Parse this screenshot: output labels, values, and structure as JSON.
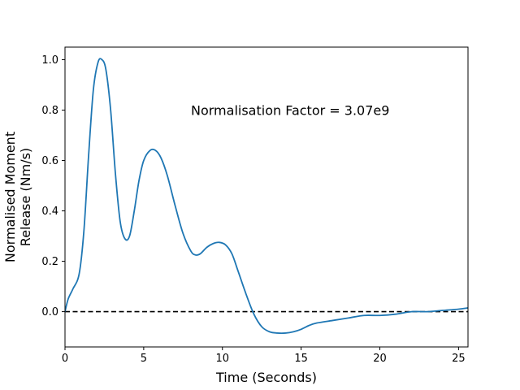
{
  "chart_data": {
    "type": "line",
    "title": "",
    "xlabel": "Time (Seconds)",
    "ylabel_lines": [
      "Normalised Moment",
      "Release (Nm/s)"
    ],
    "xlim": [
      0,
      25.6
    ],
    "ylim": [
      -0.14,
      1.05
    ],
    "xticks": [
      0,
      5,
      10,
      15,
      20,
      25
    ],
    "yticks": [
      0.0,
      0.2,
      0.4,
      0.6,
      0.8,
      1.0
    ],
    "xtick_labels": [
      "0",
      "5",
      "10",
      "15",
      "20",
      "25"
    ],
    "ytick_labels": [
      "0.0",
      "0.2",
      "0.4",
      "0.6",
      "0.8",
      "1.0"
    ],
    "grid": false,
    "legend": "none",
    "annotation": {
      "text": "Normalisation Factor = 3.07e9",
      "x": 8.0,
      "y": 0.8
    },
    "reference_line": {
      "y": 0.0,
      "style": "dashed",
      "color": "#000000"
    },
    "series": [
      {
        "color": "#1f77b4",
        "x": [
          0,
          0.2,
          0.5,
          0.9,
          1.2,
          1.5,
          1.8,
          2.1,
          2.35,
          2.6,
          2.9,
          3.2,
          3.5,
          3.8,
          4.1,
          4.4,
          4.7,
          5.0,
          5.4,
          5.75,
          6.1,
          6.5,
          7.0,
          7.5,
          8.0,
          8.3,
          8.6,
          9.0,
          9.4,
          9.8,
          10.2,
          10.6,
          11.0,
          11.5,
          12.0,
          12.5,
          13.0,
          13.5,
          14.0,
          14.5,
          15.0,
          15.5,
          16.0,
          17.0,
          18.0,
          19.0,
          20.0,
          21.0,
          22.0,
          23.0,
          24.0,
          25.0,
          25.6
        ],
        "y": [
          0.0,
          0.05,
          0.09,
          0.15,
          0.32,
          0.62,
          0.88,
          0.99,
          1.0,
          0.96,
          0.8,
          0.55,
          0.36,
          0.29,
          0.3,
          0.4,
          0.52,
          0.6,
          0.64,
          0.64,
          0.61,
          0.54,
          0.42,
          0.31,
          0.24,
          0.225,
          0.23,
          0.255,
          0.27,
          0.275,
          0.265,
          0.23,
          0.16,
          0.07,
          -0.01,
          -0.06,
          -0.08,
          -0.085,
          -0.085,
          -0.08,
          -0.07,
          -0.055,
          -0.045,
          -0.035,
          -0.025,
          -0.015,
          -0.015,
          -0.01,
          0.0,
          0.0,
          0.005,
          0.01,
          0.015
        ]
      }
    ]
  }
}
